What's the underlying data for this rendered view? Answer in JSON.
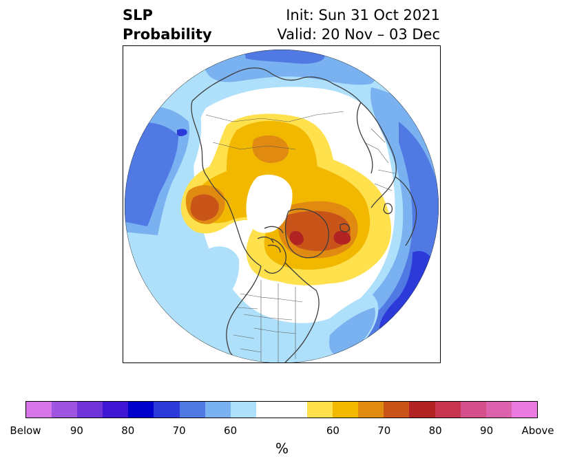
{
  "title": {
    "line1": "SLP",
    "line2": "Probability"
  },
  "subtitle": {
    "init": "Init: Sun 31 Oct 2021",
    "valid": "Valid: 20 Nov – 03 Dec"
  },
  "legend": {
    "colors": [
      "#d675e8",
      "#a055e0",
      "#7033d8",
      "#3f16d2",
      "#0000cc",
      "#2b3ad9",
      "#5079e4",
      "#7ab1f0",
      "#aee0fb",
      "#ffffff",
      "#ffffff",
      "#ffe14d",
      "#f2b800",
      "#e08a12",
      "#c9541a",
      "#b22323",
      "#c8354e",
      "#d3508b",
      "#dd62ad",
      "#e97be0"
    ],
    "ticks": [
      "Below",
      "90",
      "80",
      "70",
      "60",
      "60",
      "70",
      "80",
      "90",
      "Above"
    ],
    "unit": "%"
  },
  "map": {
    "projection": "north-polar-stereographic",
    "fields": [
      {
        "category": "below",
        "level": 60,
        "color": "#aee0fb"
      },
      {
        "category": "below",
        "level": 65,
        "color": "#7ab1f0"
      },
      {
        "category": "below",
        "level": 70,
        "color": "#5079e4"
      },
      {
        "category": "below",
        "level": 75,
        "color": "#2b3ad9"
      },
      {
        "category": "above",
        "level": 55,
        "color": "#ffe14d"
      },
      {
        "category": "above",
        "level": 60,
        "color": "#f2b800"
      },
      {
        "category": "above",
        "level": 65,
        "color": "#e08a12"
      },
      {
        "category": "above",
        "level": 70,
        "color": "#c9541a"
      },
      {
        "category": "above",
        "level": 75,
        "color": "#b22323"
      }
    ]
  }
}
